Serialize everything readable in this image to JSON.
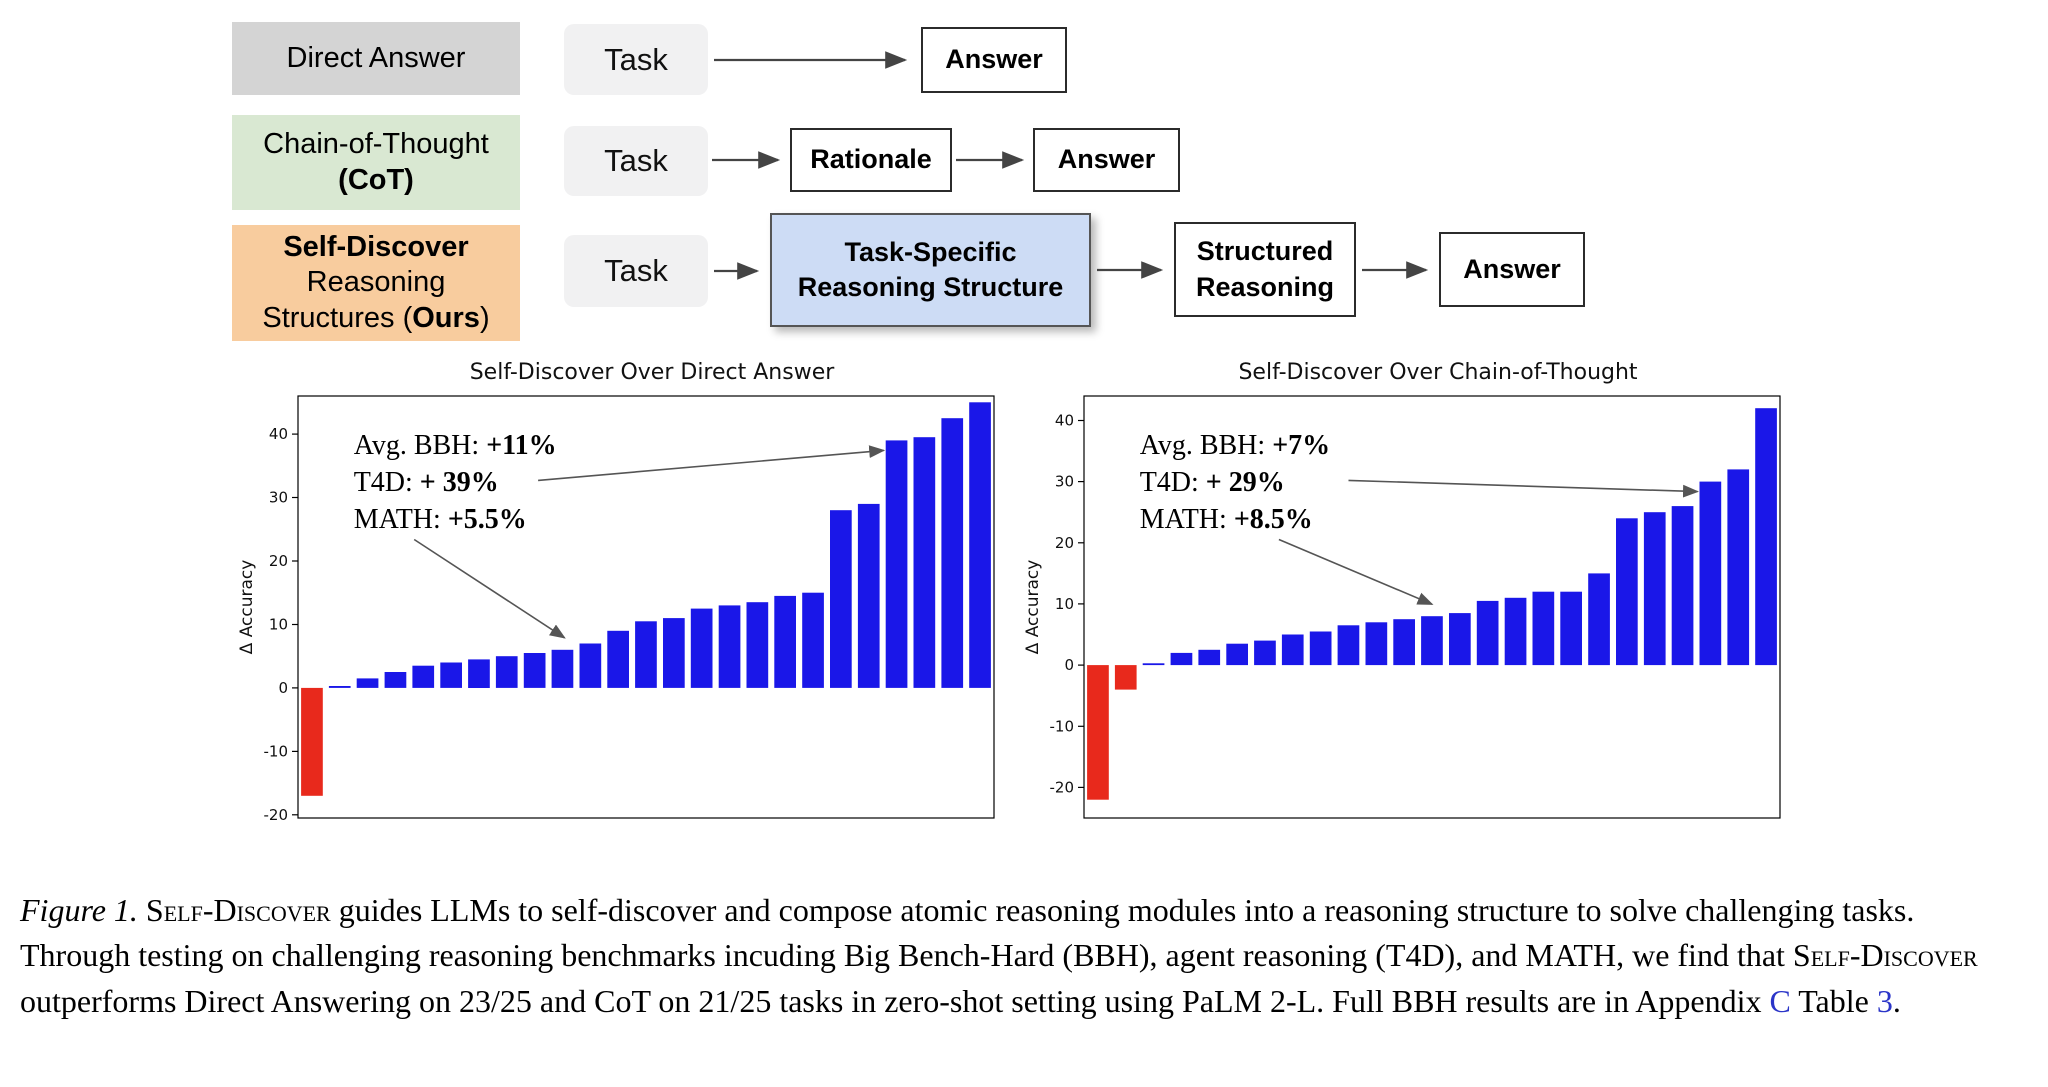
{
  "diagram": {
    "task_label": "Task",
    "rows": {
      "direct": {
        "label": "Direct Answer",
        "answer": "Answer"
      },
      "cot": {
        "label_line1": "Chain-of-Thought",
        "label_line2": "(CoT)",
        "rationale": "Rationale",
        "answer": "Answer"
      },
      "self_discover": {
        "label_line1": "Self-Discover",
        "label_line2": "Reasoning",
        "label_line3_pre": "Structures (",
        "label_line3_bold": "Ours",
        "label_line3_post": ")",
        "structure_line1": "Task-Specific",
        "structure_line2": "Reasoning Structure",
        "structured_line1": "Structured",
        "structured_line2": "Reasoning",
        "answer": "Answer"
      }
    },
    "colors": {
      "direct_label_bg": "#d4d4d4",
      "cot_label_bg": "#d9e8d2",
      "ours_label_bg": "#f8cc9e",
      "task_bg": "#f1f1f2",
      "structure_bg": "#cddcf5"
    }
  },
  "chart_data": [
    {
      "type": "bar",
      "title": "Self-Discover Over Direct Answer",
      "xlabel": "",
      "ylabel": "Δ Accuracy",
      "values": [
        -17,
        0.3,
        1.5,
        2.5,
        3.5,
        4,
        4.5,
        5,
        5.5,
        6,
        7,
        9,
        10.5,
        11,
        12.5,
        13,
        13.5,
        14.5,
        15,
        28,
        29,
        39,
        39.5,
        42.5,
        45
      ],
      "ylim": [
        -20.5,
        46
      ],
      "yticks": [
        -20,
        -10,
        0,
        10,
        20,
        30,
        40
      ],
      "grid": false,
      "legend": false,
      "colors": {
        "positive": "#1a17e8",
        "negative": "#e8291c"
      },
      "annotation": {
        "lines": [
          {
            "label": "Avg. BBH: ",
            "value": "+11%"
          },
          {
            "label": "T4D: ",
            "value": "+ 39%"
          },
          {
            "label": "MATH: ",
            "value": "+5.5%"
          }
        ],
        "arrows": [
          {
            "from": [
              0.345,
              0.2
            ],
            "to_bar": 21,
            "dx": -13,
            "dy": 10
          },
          {
            "from": [
              0.167,
              0.34
            ],
            "to_bar": 9,
            "dx": 2,
            "dy": -12
          }
        ]
      }
    },
    {
      "type": "bar",
      "title": "Self-Discover Over Chain-of-Thought",
      "xlabel": "",
      "ylabel": "Δ Accuracy",
      "values": [
        -22,
        -4,
        0.3,
        2,
        2.5,
        3.5,
        4,
        5,
        5.5,
        6.5,
        7,
        7.5,
        8,
        8.5,
        10.5,
        11,
        12,
        12,
        15,
        24,
        25,
        26,
        30,
        32,
        42
      ],
      "ylim": [
        -25,
        44
      ],
      "yticks": [
        -20,
        -10,
        0,
        10,
        20,
        30,
        40
      ],
      "grid": false,
      "legend": false,
      "colors": {
        "positive": "#1a17e8",
        "negative": "#e8291c"
      },
      "annotation": {
        "lines": [
          {
            "label": "Avg. BBH: ",
            "value": "+7%"
          },
          {
            "label": "T4D: ",
            "value": "+ 29%"
          },
          {
            "label": "MATH: ",
            "value": "+8.5%"
          }
        ],
        "arrows": [
          {
            "from": [
              0.38,
              0.2
            ],
            "to_bar": 22,
            "dx": -13,
            "dy": 10
          },
          {
            "from": [
              0.28,
              0.34
            ],
            "to_bar": 12,
            "dx": 0,
            "dy": -12
          }
        ]
      }
    }
  ],
  "caption": {
    "segments": [
      {
        "text": "Figure 1. ",
        "style": "italic"
      },
      {
        "text": "Self-Discover",
        "style": "smallcaps"
      },
      {
        "text": " guides LLMs to self-discover and compose atomic reasoning modules into a reasoning structure to solve challenging tasks. Through testing on challenging reasoning benchmarks incuding Big Bench-Hard (BBH), agent reasoning (T4D), and MATH, we find that ",
        "style": "normal"
      },
      {
        "text": "Self-Discover",
        "style": "smallcaps"
      },
      {
        "text": " outperforms Direct Answering on 23/25 and CoT on 21/25 tasks in zero-shot setting using PaLM 2-L. Full BBH results are in Appendix ",
        "style": "normal"
      },
      {
        "text": "C",
        "style": "link"
      },
      {
        "text": " Table ",
        "style": "normal"
      },
      {
        "text": "3",
        "style": "link"
      },
      {
        "text": ".",
        "style": "normal"
      }
    ]
  }
}
